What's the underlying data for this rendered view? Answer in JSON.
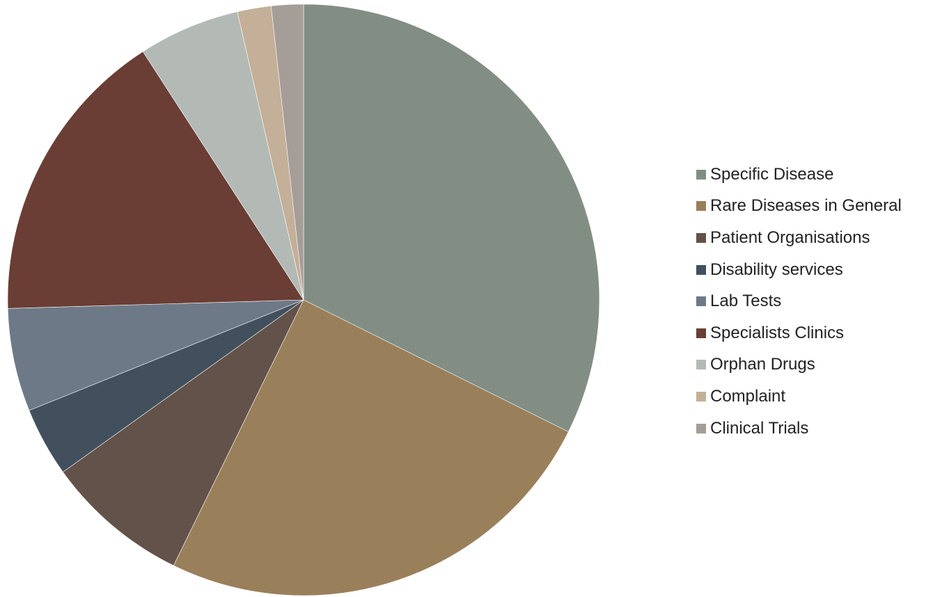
{
  "chart_data": {
    "type": "pie",
    "title": "",
    "start_angle_deg": 0,
    "direction": "clockwise",
    "legend_position": "right",
    "slices": [
      {
        "label": "Specific Disease",
        "value": 33.3,
        "color": "#828E84"
      },
      {
        "label": "Rare Diseases in General",
        "value": 25.6,
        "color": "#9A7F5B"
      },
      {
        "label": "Patient Organisations",
        "value": 8.1,
        "color": "#635249"
      },
      {
        "label": "Disability services",
        "value": 3.9,
        "color": "#42505E"
      },
      {
        "label": "Lab Tests",
        "value": 5.8,
        "color": "#6E7988"
      },
      {
        "label": "Specialists Clinics",
        "value": 16.8,
        "color": "#6A3E35"
      },
      {
        "label": "Orphan Drugs",
        "value": 5.7,
        "color": "#B3BAB5"
      },
      {
        "label": "Complaint",
        "value": 1.9,
        "color": "#C4AF98"
      },
      {
        "label": "Clinical Trials",
        "value": 1.8,
        "color": "#A59D98"
      }
    ]
  }
}
